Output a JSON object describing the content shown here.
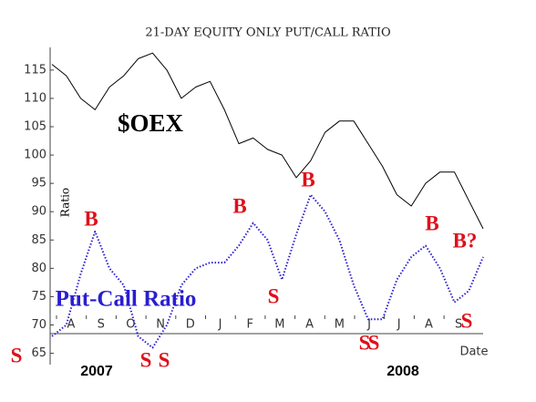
{
  "chart_data": {
    "type": "line",
    "title": "21-DAY EQUITY ONLY PUT/CALL RATIO",
    "y_label": "Ratio",
    "x_label": "Date",
    "months": [
      "A",
      "S",
      "O",
      "N",
      "D",
      "J",
      "F",
      "M",
      "A",
      "M",
      "J",
      "J",
      "A",
      "S"
    ],
    "years": [
      "2007",
      "2008"
    ],
    "ylim": [
      63,
      119
    ],
    "yticks": [
      65,
      70,
      75,
      80,
      85,
      90,
      95,
      100,
      105,
      110,
      115
    ],
    "series": [
      {
        "name": "$OEX",
        "color": "#000000",
        "style": "solid",
        "values": [
          116,
          114,
          110,
          108,
          112,
          114,
          117,
          118,
          115,
          110,
          112,
          113,
          108,
          102,
          103,
          101,
          100,
          96,
          99,
          104,
          106,
          106,
          102,
          98,
          93,
          91,
          95,
          97,
          97,
          92,
          87
        ]
      },
      {
        "name": "Put-Call Ratio",
        "color": "#2a1ed0",
        "style": "dotted",
        "values": [
          68,
          70,
          79,
          86.5,
          80,
          77,
          68,
          66,
          70,
          77,
          80,
          81,
          81,
          84,
          88,
          85,
          78,
          86,
          93,
          90,
          85,
          77,
          71,
          71,
          78,
          82,
          84,
          80,
          74,
          76,
          82
        ]
      }
    ],
    "annotations": [
      "S",
      "B",
      "S",
      "S",
      "B",
      "S",
      "B",
      "S",
      "S",
      "B",
      "S",
      "B?"
    ]
  }
}
